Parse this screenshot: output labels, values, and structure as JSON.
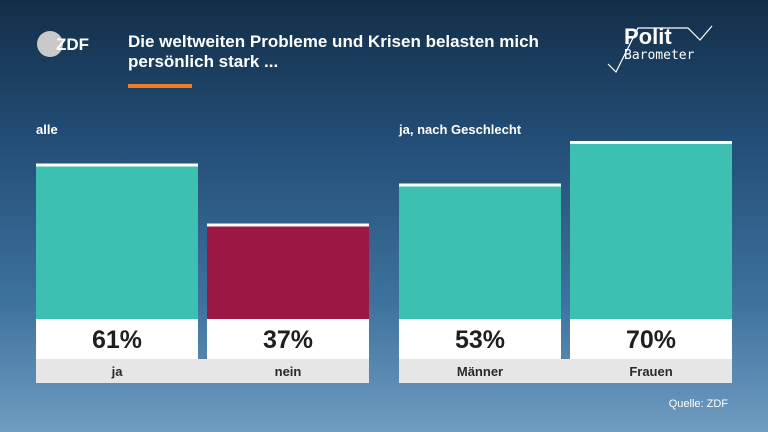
{
  "header": {
    "title": "Die weltweiten Probleme und Krisen belasten mich persönlich stark ...",
    "logo_left": "ZDF",
    "logo_right_line1": "Polit",
    "logo_right_line2": "Barometer"
  },
  "groups": [
    {
      "label": "alle"
    },
    {
      "label": "ja, nach Geschlecht"
    }
  ],
  "source": "Quelle: ZDF",
  "colors": {
    "teal": "#3dbfb2",
    "crimson": "#9b1845",
    "accent": "#ef7b22",
    "label_bg": "#e6e6e6"
  },
  "chart_data": {
    "type": "bar",
    "categories": [
      "ja",
      "nein",
      "Männer",
      "Frauen"
    ],
    "values": [
      61,
      37,
      53,
      70
    ],
    "value_labels": [
      "61%",
      "37%",
      "53%",
      "70%"
    ],
    "unit": "%",
    "bar_colors": [
      "#3dbfb2",
      "#9b1845",
      "#3dbfb2",
      "#3dbfb2"
    ],
    "ylim": [
      0,
      100
    ],
    "grid": false,
    "legend": "none"
  }
}
